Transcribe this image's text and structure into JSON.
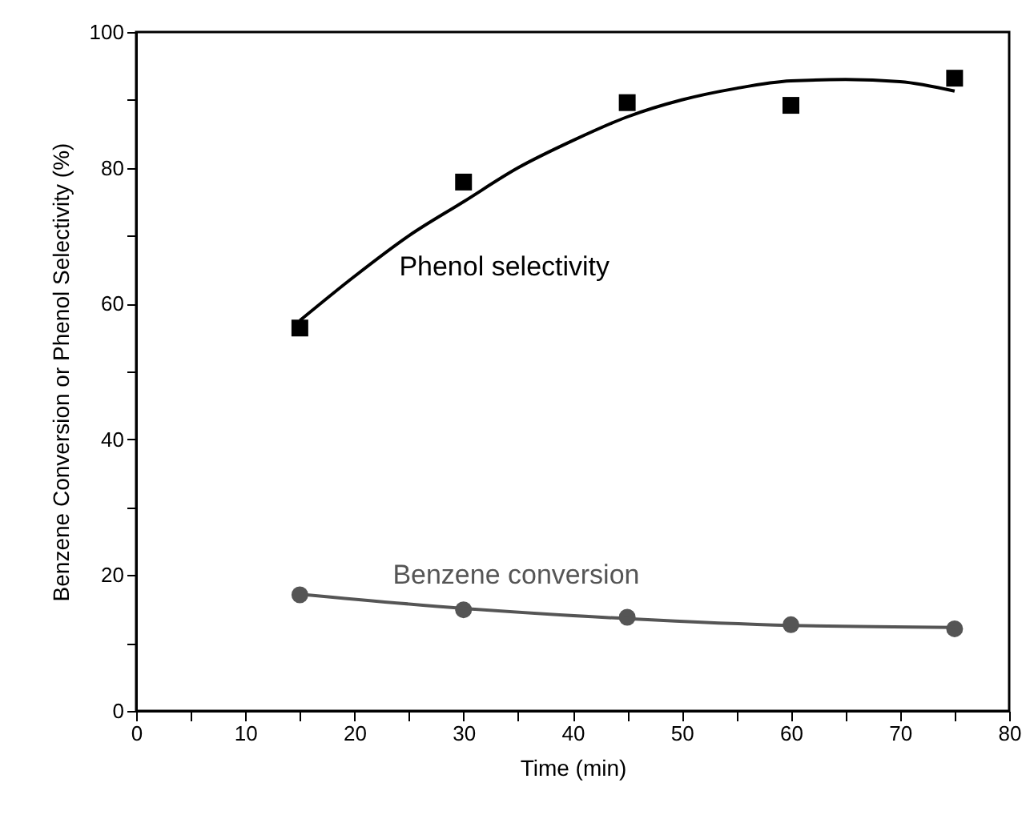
{
  "chart_data": {
    "type": "scatter",
    "xlabel": "Time (min)",
    "ylabel": "Benzene Conversion or Phenol Selectivity (%)",
    "xlim": [
      0,
      80
    ],
    "ylim": [
      0,
      100
    ],
    "xticks": [
      0,
      {
        "value": 5,
        "label": null
      },
      10,
      {
        "value": 15,
        "label": null
      },
      20,
      {
        "value": 25,
        "label": null
      },
      30,
      {
        "value": 35,
        "label": null
      },
      40,
      {
        "value": 45,
        "label": null
      },
      50,
      {
        "value": 55,
        "label": null
      },
      60,
      {
        "value": 65,
        "label": null
      },
      70,
      {
        "value": 75,
        "label": null
      },
      80
    ],
    "yticks": [
      0,
      {
        "value": 10,
        "label": null
      },
      20,
      {
        "value": 30,
        "label": null
      },
      40,
      {
        "value": 50,
        "label": null
      },
      60,
      {
        "value": 70,
        "label": null
      },
      80,
      {
        "value": 90,
        "label": null
      },
      100
    ],
    "grid": false,
    "x": [
      15,
      30,
      45,
      60,
      75
    ],
    "series": [
      {
        "name": "Phenol selectivity",
        "marker": "square",
        "color": "#000000",
        "values": [
          56.4,
          77.9,
          89.6,
          89.2,
          93.2
        ]
      },
      {
        "name": "Benzene conversion",
        "marker": "circle",
        "color": "#555555",
        "values": [
          17.1,
          14.9,
          13.8,
          12.7,
          12.1
        ]
      },
      {
        "type": "line",
        "color": "#000000",
        "marker": "none",
        "line_style": "solid",
        "x": [
          15,
          20,
          25,
          30,
          35,
          40,
          45,
          50,
          55,
          60,
          65,
          70,
          75
        ],
        "values": [
          57.5,
          64,
          70,
          75,
          80,
          84,
          87.5,
          90,
          91.7,
          92.8,
          93,
          92.7,
          91.3
        ]
      },
      {
        "type": "line",
        "color": "#555555",
        "marker": "none",
        "line_style": "solid",
        "x": [
          15,
          30,
          45,
          60,
          75
        ],
        "values": [
          17.2,
          15.1,
          13.6,
          12.6,
          12.3
        ]
      }
    ]
  }
}
